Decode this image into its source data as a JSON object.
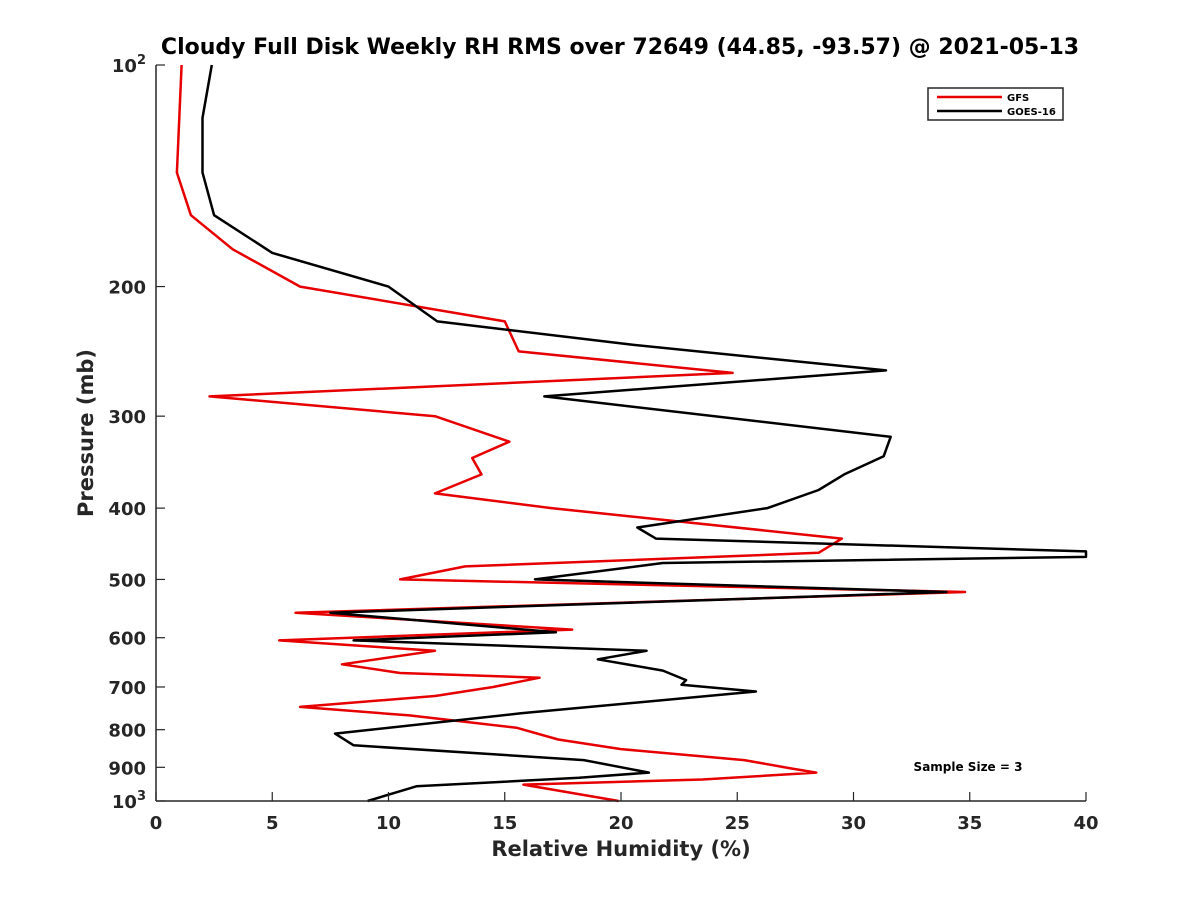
{
  "chart_data": {
    "type": "line",
    "title": "Cloudy Full Disk Weekly RH RMS over 72649 (44.85, -93.57) @ 2021-05-13",
    "xlabel": "Relative Humidity (%)",
    "ylabel": "Pressure (mb)",
    "xlim": [
      0,
      40
    ],
    "ylim": [
      100,
      1000
    ],
    "y_scale": "log",
    "y_reversed": true,
    "x_ticks": [
      "0",
      "5",
      "10",
      "15",
      "20",
      "25",
      "30",
      "35",
      "40"
    ],
    "y_ticks": [
      {
        "value": 100,
        "base": "10",
        "exp": "2"
      },
      {
        "value": 200,
        "label": "200"
      },
      {
        "value": 300,
        "label": "300"
      },
      {
        "value": 400,
        "label": "400"
      },
      {
        "value": 500,
        "label": "500"
      },
      {
        "value": 600,
        "label": "600"
      },
      {
        "value": 700,
        "label": "700"
      },
      {
        "value": 800,
        "label": "800"
      },
      {
        "value": 900,
        "label": "900"
      },
      {
        "value": 1000,
        "base": "10",
        "exp": "3"
      }
    ],
    "legend_position": "top-right",
    "grid": false,
    "annotation": "Sample Size = 3",
    "series": [
      {
        "name": "GFS",
        "color": "#e60000",
        "points": [
          {
            "x": 1.1,
            "p": 100
          },
          {
            "x": 0.9,
            "p": 140
          },
          {
            "x": 1.5,
            "p": 160
          },
          {
            "x": 3.3,
            "p": 178
          },
          {
            "x": 6.2,
            "p": 200
          },
          {
            "x": 15.0,
            "p": 223
          },
          {
            "x": 15.6,
            "p": 245
          },
          {
            "x": 24.8,
            "p": 262
          },
          {
            "x": 2.3,
            "p": 282
          },
          {
            "x": 12.0,
            "p": 300
          },
          {
            "x": 15.2,
            "p": 325
          },
          {
            "x": 13.6,
            "p": 342
          },
          {
            "x": 14.0,
            "p": 360
          },
          {
            "x": 12.0,
            "p": 382
          },
          {
            "x": 17.0,
            "p": 400
          },
          {
            "x": 29.5,
            "p": 440
          },
          {
            "x": 28.5,
            "p": 460
          },
          {
            "x": 13.3,
            "p": 480
          },
          {
            "x": 10.5,
            "p": 500
          },
          {
            "x": 34.8,
            "p": 520
          },
          {
            "x": 6.0,
            "p": 555
          },
          {
            "x": 17.9,
            "p": 585
          },
          {
            "x": 5.3,
            "p": 605
          },
          {
            "x": 12.0,
            "p": 625
          },
          {
            "x": 8.0,
            "p": 652
          },
          {
            "x": 10.5,
            "p": 670
          },
          {
            "x": 16.5,
            "p": 680
          },
          {
            "x": 14.5,
            "p": 700
          },
          {
            "x": 12.0,
            "p": 720
          },
          {
            "x": 6.2,
            "p": 745
          },
          {
            "x": 10.9,
            "p": 765
          },
          {
            "x": 15.5,
            "p": 795
          },
          {
            "x": 17.3,
            "p": 825
          },
          {
            "x": 20.0,
            "p": 850
          },
          {
            "x": 25.3,
            "p": 880
          },
          {
            "x": 27.3,
            "p": 903
          },
          {
            "x": 28.4,
            "p": 915
          },
          {
            "x": 23.5,
            "p": 935
          },
          {
            "x": 15.8,
            "p": 950
          },
          {
            "x": 19.9,
            "p": 1000
          }
        ]
      },
      {
        "name": "GOES-16",
        "color": "#000000",
        "points": [
          {
            "x": 2.4,
            "p": 100
          },
          {
            "x": 2.0,
            "p": 118
          },
          {
            "x": 2.0,
            "p": 140
          },
          {
            "x": 2.5,
            "p": 160
          },
          {
            "x": 5.0,
            "p": 180
          },
          {
            "x": 10.0,
            "p": 200
          },
          {
            "x": 12.1,
            "p": 223
          },
          {
            "x": 20.5,
            "p": 240
          },
          {
            "x": 31.4,
            "p": 260
          },
          {
            "x": 16.7,
            "p": 282
          },
          {
            "x": 31.6,
            "p": 320
          },
          {
            "x": 31.3,
            "p": 340
          },
          {
            "x": 29.6,
            "p": 360
          },
          {
            "x": 28.5,
            "p": 378
          },
          {
            "x": 26.3,
            "p": 400
          },
          {
            "x": 20.7,
            "p": 425
          },
          {
            "x": 21.5,
            "p": 440
          },
          {
            "x": 40.0,
            "p": 458
          },
          {
            "x": 40.0,
            "p": 466
          },
          {
            "x": 21.8,
            "p": 475
          },
          {
            "x": 16.3,
            "p": 500
          },
          {
            "x": 34.0,
            "p": 520
          },
          {
            "x": 7.5,
            "p": 555
          },
          {
            "x": 17.2,
            "p": 590
          },
          {
            "x": 8.5,
            "p": 605
          },
          {
            "x": 21.1,
            "p": 625
          },
          {
            "x": 19.0,
            "p": 642
          },
          {
            "x": 21.8,
            "p": 665
          },
          {
            "x": 22.8,
            "p": 685
          },
          {
            "x": 22.6,
            "p": 695
          },
          {
            "x": 25.8,
            "p": 710
          },
          {
            "x": 15.7,
            "p": 760
          },
          {
            "x": 7.7,
            "p": 810
          },
          {
            "x": 8.5,
            "p": 840
          },
          {
            "x": 18.4,
            "p": 880
          },
          {
            "x": 21.2,
            "p": 915
          },
          {
            "x": 18.2,
            "p": 930
          },
          {
            "x": 11.2,
            "p": 955
          },
          {
            "x": 9.1,
            "p": 1000
          }
        ]
      }
    ]
  }
}
